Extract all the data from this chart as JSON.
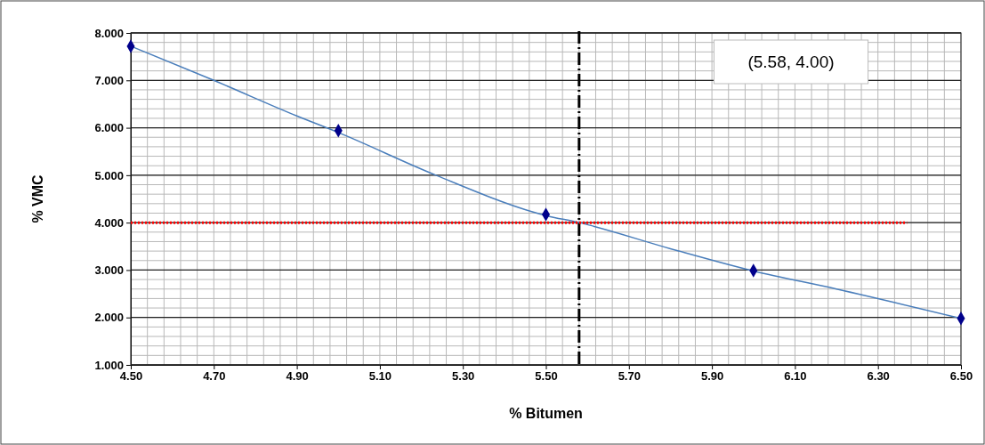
{
  "chart_data": {
    "type": "scatter",
    "xlabel": "% Bitumen",
    "ylabel": "% VMC",
    "xlim": [
      4.5,
      6.5
    ],
    "xticks": [
      {
        "value": 4.5,
        "label": "4.50"
      },
      {
        "value": 4.7,
        "label": "4.70"
      },
      {
        "value": 4.9,
        "label": "4.90"
      },
      {
        "value": 5.1,
        "label": "5.10"
      },
      {
        "value": 5.3,
        "label": "5.30"
      },
      {
        "value": 5.5,
        "label": "5.50"
      },
      {
        "value": 5.7,
        "label": "5.70"
      },
      {
        "value": 5.9,
        "label": "5.90"
      },
      {
        "value": 6.1,
        "label": "6.10"
      },
      {
        "value": 6.3,
        "label": "6.30"
      },
      {
        "value": 6.5,
        "label": "6.50"
      }
    ],
    "ylim": [
      1,
      8
    ],
    "yticks": [
      {
        "value": 1,
        "label": "1.000"
      },
      {
        "value": 2,
        "label": "2.000"
      },
      {
        "value": 3,
        "label": "3.000"
      },
      {
        "value": 4,
        "label": "4.000"
      },
      {
        "value": 5,
        "label": "5.000"
      },
      {
        "value": 6,
        "label": "6.000"
      },
      {
        "value": 7,
        "label": "7.000"
      },
      {
        "value": 8,
        "label": "8.000"
      }
    ],
    "grid": true,
    "series": [
      {
        "type": "line",
        "color": "#4a7ebb",
        "marker": "none",
        "line_style": "solid",
        "x": [
          4.5,
          4.7,
          4.9,
          5.0,
          5.235,
          5.5,
          5.58,
          5.8,
          6.0,
          6.2,
          6.5
        ],
        "values": [
          7.72,
          7.0,
          6.25,
          5.9,
          5.0,
          4.15,
          4.0,
          3.45,
          2.98,
          2.6,
          1.98
        ]
      },
      {
        "type": "line",
        "color": "#ff0000",
        "marker": "none",
        "line_style": "dotted",
        "x": [
          4.5,
          6.37
        ],
        "values": [
          4.0,
          4.0
        ]
      },
      {
        "color": "#00008b",
        "marker": "diamond",
        "x": [
          4.5,
          5.0,
          5.5,
          6.0,
          6.5
        ],
        "values": [
          7.72,
          5.94,
          4.17,
          2.99,
          1.98
        ]
      }
    ],
    "ref_lines": [
      {
        "axis": "x",
        "value": 5.58,
        "color": "#000000",
        "line_style": "dashed"
      }
    ],
    "annotations": [
      "(5.58, 4.00)"
    ]
  }
}
